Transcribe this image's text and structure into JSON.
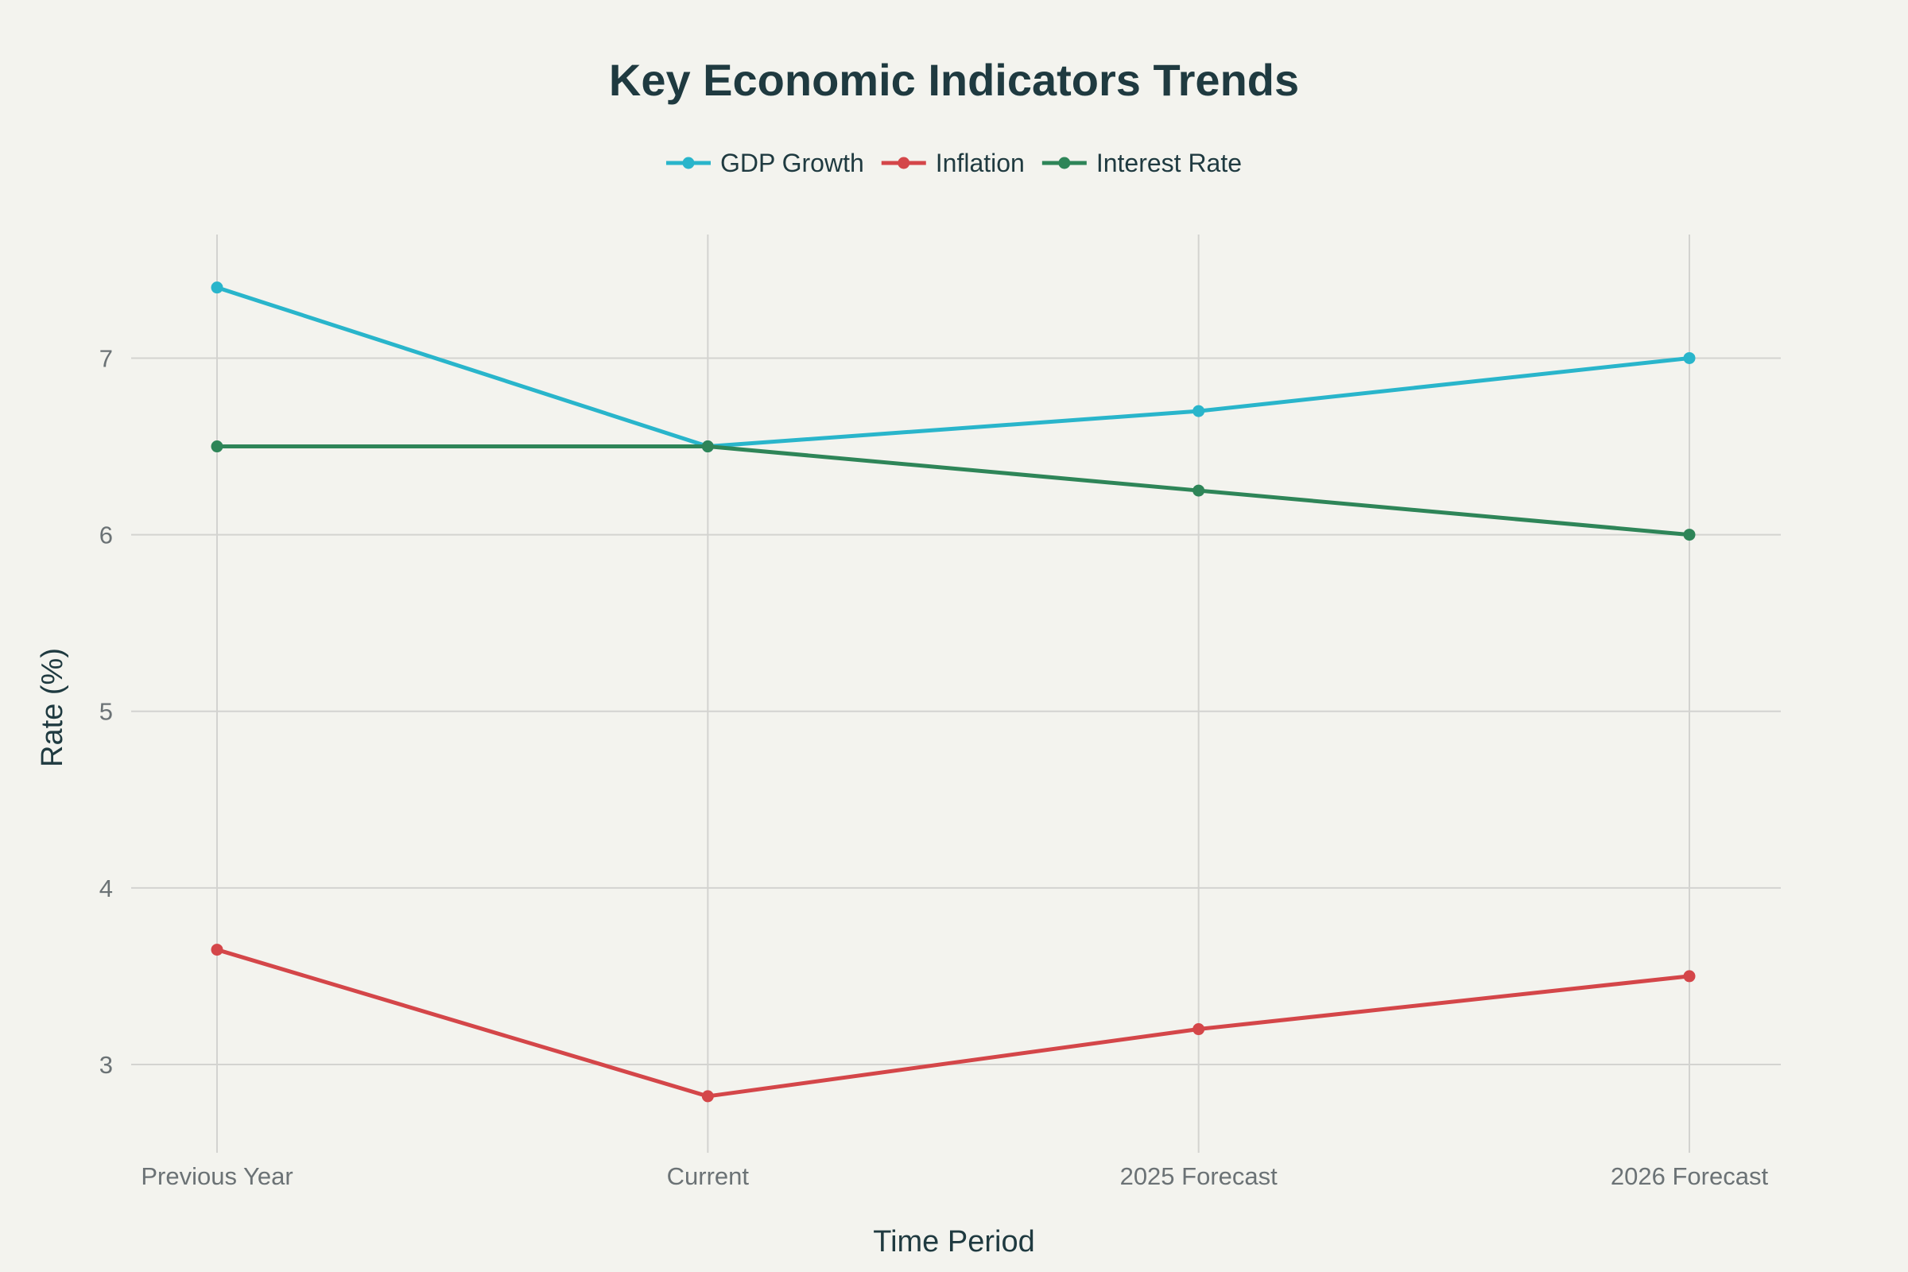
{
  "chart_data": {
    "type": "line",
    "title": "Key Economic Indicators Trends",
    "xlabel": "Time Period",
    "ylabel": "Rate (%)",
    "categories": [
      "Previous Year",
      "Current",
      "2025 Forecast",
      "2026 Forecast"
    ],
    "ylim": [
      2.5,
      7.7
    ],
    "yticks": [
      3,
      4,
      5,
      6,
      7
    ],
    "grid": true,
    "legend_position": "top-center",
    "series": [
      {
        "name": "GDP Growth",
        "color": "#29b5cb",
        "values": [
          7.4,
          6.5,
          6.7,
          7.0
        ]
      },
      {
        "name": "Inflation",
        "color": "#d44649",
        "values": [
          3.65,
          2.82,
          3.2,
          3.5
        ]
      },
      {
        "name": "Interest Rate",
        "color": "#2e8558",
        "values": [
          6.5,
          6.5,
          6.25,
          6.0
        ]
      }
    ]
  }
}
